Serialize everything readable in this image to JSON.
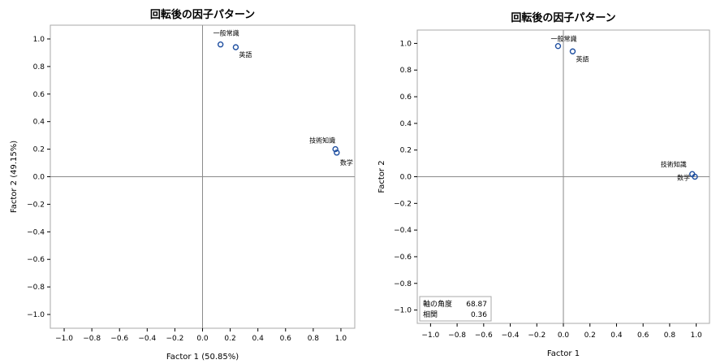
{
  "chart_data": [
    {
      "type": "scatter",
      "title": "回転後の因子パターン",
      "xlabel": "Factor 1 (50.85%)",
      "ylabel": "Factor 2 (49.15%)",
      "xlim": [
        -1.1,
        1.1
      ],
      "ylim": [
        -1.1,
        1.1
      ],
      "xticks": [
        "−1.0",
        "−0.8",
        "−0.6",
        "−0.4",
        "−0.2",
        "0.0",
        "0.2",
        "0.4",
        "0.6",
        "0.8",
        "1.0"
      ],
      "yticks": [
        "1.0",
        "0.8",
        "0.6",
        "0.4",
        "0.2",
        "0.0",
        "−0.2",
        "−0.4",
        "−0.6",
        "−0.8",
        "−1.0"
      ],
      "reference_lines": {
        "x": 0,
        "y": 0
      },
      "points": [
        {
          "label": "一般常識",
          "x": 0.13,
          "y": 0.96
        },
        {
          "label": "英語",
          "x": 0.24,
          "y": 0.94
        },
        {
          "label": "技術知識",
          "x": 0.96,
          "y": 0.2
        },
        {
          "label": "数学",
          "x": 0.97,
          "y": 0.175
        }
      ]
    },
    {
      "type": "scatter",
      "title": "回転後の因子パターン",
      "xlabel": "Factor 1",
      "ylabel": "Factor 2",
      "xlim": [
        -1.1,
        1.1
      ],
      "ylim": [
        -1.1,
        1.1
      ],
      "xticks": [
        "−1.0",
        "−0.8",
        "−0.6",
        "−0.4",
        "−0.2",
        "0.0",
        "0.2",
        "0.4",
        "0.6",
        "0.8",
        "1.0"
      ],
      "yticks": [
        "1.0",
        "0.8",
        "0.6",
        "0.4",
        "0.2",
        "0.0",
        "−0.2",
        "−0.4",
        "−0.6",
        "−0.8",
        "−1.0"
      ],
      "reference_lines": {
        "x": 0,
        "y": 0
      },
      "points": [
        {
          "label": "一般常識",
          "x": -0.04,
          "y": 0.98
        },
        {
          "label": "英語",
          "x": 0.07,
          "y": 0.94
        },
        {
          "label": "技術知識",
          "x": 0.97,
          "y": 0.02
        },
        {
          "label": "数学",
          "x": 0.99,
          "y": 0.0
        }
      ],
      "inset_table": [
        {
          "label": "軸の角度",
          "value": "68.87"
        },
        {
          "label": "相関",
          "value": "0.36"
        }
      ]
    }
  ]
}
